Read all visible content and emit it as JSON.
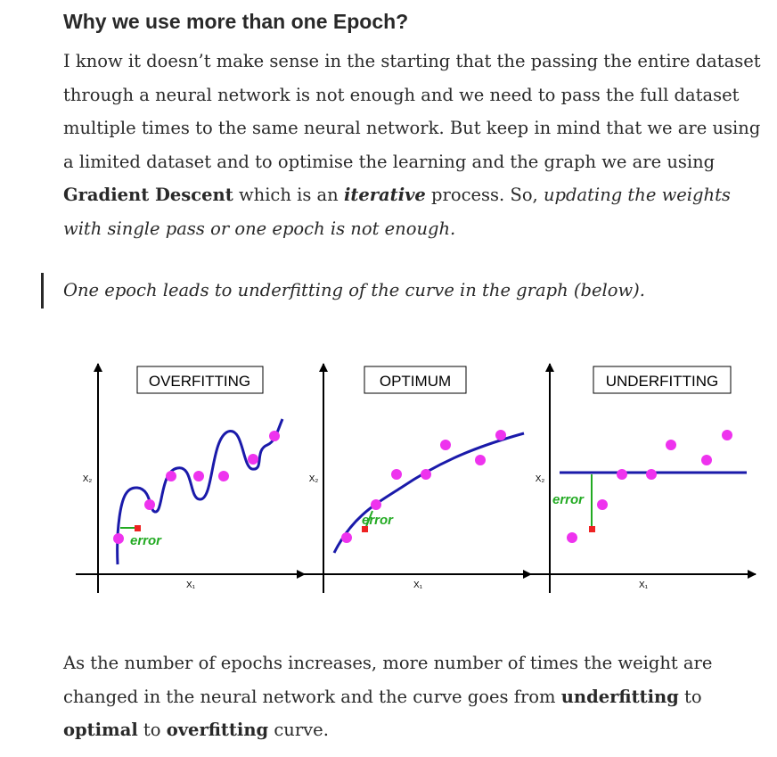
{
  "heading": "Why we use more than one Epoch?",
  "intro": {
    "t1": "I know it doesn’t make sense in the starting that the passing the entire dataset through a neural network is not enough and we need to pass the full dataset multiple times to the same neural network. But keep in mind that we are using a limited dataset and to optimise the learning and the graph we are using ",
    "b1": "Gradient Descent",
    "t2": " which is an ",
    "bi1": "iterative",
    "t3": " process. So, ",
    "i1": "updating the weights with single pass or one epoch is not enough."
  },
  "quote": "One epoch leads to underfitting of the curve in the graph (below).",
  "figure": {
    "panels": [
      {
        "title": "OVERFITTING",
        "xlabel": "X₁",
        "ylabel": "X₂",
        "annotation": "error"
      },
      {
        "title": "OPTIMUM",
        "xlabel": "X₁",
        "ylabel": "X₂",
        "annotation": "error"
      },
      {
        "title": "UNDERFITTING",
        "xlabel": "X₁",
        "ylabel": "X₂",
        "annotation": "error"
      }
    ],
    "colors": {
      "points": "#ee33ee",
      "curve": "#1a1aaa",
      "error_line": "#22aa22",
      "error_marker": "#ee2222",
      "axes": "#000000"
    }
  },
  "outro": {
    "t1": "As the number of epochs increases, more number of times the weight are changed in the neural network and the curve goes from ",
    "b1": "underfitting",
    "t2": " to ",
    "b2": "optimal",
    "t3": " to ",
    "b3": "overfitting",
    "t4": " curve."
  }
}
